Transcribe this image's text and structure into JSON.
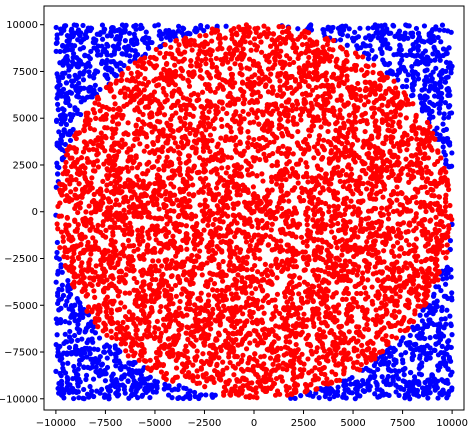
{
  "chart_data": {
    "type": "scatter",
    "title": "",
    "xlabel": "",
    "ylabel": "",
    "xlim": [
      -10600,
      10600
    ],
    "ylim": [
      -10600,
      11000
    ],
    "x_ticks": [
      -10000,
      -7500,
      -5000,
      -2500,
      0,
      2500,
      5000,
      7500,
      10000
    ],
    "y_ticks": [
      -10000,
      -7500,
      -5000,
      -2500,
      0,
      2500,
      5000,
      7500,
      10000
    ],
    "x_tick_labels": [
      "−10000",
      "−7500",
      "−5000",
      "−2500",
      "0",
      "2500",
      "5000",
      "7500",
      "10000"
    ],
    "y_tick_labels": [
      "−10000",
      "−7500",
      "−5000",
      "−2500",
      "0",
      "2500",
      "5000",
      "7500",
      "10000"
    ],
    "grid": false,
    "series": [
      {
        "color": "#0000ff",
        "region": "inside square [-10000, 10000] x [-10000, 10000], outside circle of radius 10000",
        "points": [
          [
            -9600,
            9700
          ],
          [
            -8900,
            9200
          ],
          [
            -9400,
            8100
          ],
          [
            -8200,
            9800
          ],
          [
            -7400,
            9400
          ],
          [
            -9800,
            7200
          ],
          [
            -8700,
            7900
          ],
          [
            -6500,
            9700
          ],
          [
            -9300,
            6400
          ],
          [
            -7900,
            8600
          ],
          [
            9600,
            9700
          ],
          [
            8900,
            9200
          ],
          [
            9400,
            8100
          ],
          [
            8200,
            9800
          ],
          [
            7400,
            9400
          ],
          [
            9800,
            7200
          ],
          [
            8700,
            7900
          ],
          [
            6500,
            9700
          ],
          [
            9300,
            6400
          ],
          [
            7900,
            8600
          ],
          [
            -9600,
            -9700
          ],
          [
            -8900,
            -9200
          ],
          [
            -9400,
            -8100
          ],
          [
            -8200,
            -9800
          ],
          [
            -7400,
            -9400
          ],
          [
            -9800,
            -7200
          ],
          [
            -8700,
            -7900
          ],
          [
            -6500,
            -9700
          ],
          [
            -9300,
            -6400
          ],
          [
            -7900,
            -8600
          ],
          [
            9600,
            -9700
          ],
          [
            8900,
            -9200
          ],
          [
            9400,
            -8100
          ],
          [
            8200,
            -9800
          ],
          [
            7400,
            -9400
          ],
          [
            9800,
            -7200
          ],
          [
            8700,
            -7900
          ],
          [
            6500,
            -9700
          ],
          [
            9300,
            -6400
          ],
          [
            7900,
            -8600
          ]
        ]
      },
      {
        "color": "#ff0000",
        "region": "inside circle of radius 10000",
        "points": [
          [
            0,
            0
          ],
          [
            2500,
            3100
          ],
          [
            -2200,
            4100
          ],
          [
            5100,
            -1800
          ],
          [
            -6300,
            -2400
          ],
          [
            1200,
            -7300
          ],
          [
            -4100,
            6900
          ],
          [
            7600,
            4200
          ],
          [
            -8100,
            2500
          ],
          [
            3700,
            -6100
          ],
          [
            -1500,
            -4700
          ],
          [
            6200,
            1600
          ],
          [
            -5600,
            5200
          ],
          [
            8800,
            -2100
          ],
          [
            -3300,
            -8600
          ]
        ]
      }
    ]
  }
}
